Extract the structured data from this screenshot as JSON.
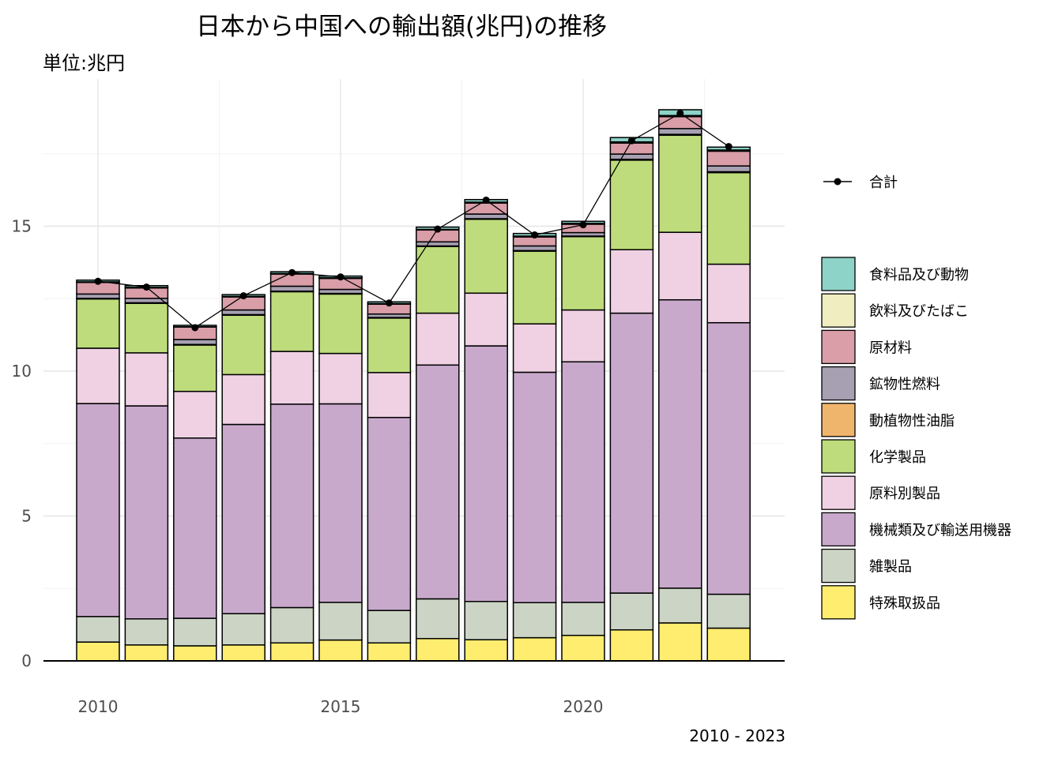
{
  "chart_data": {
    "type": "bar",
    "stacked": true,
    "title": "日本から中国への輸出額(兆円)の推移",
    "subtitle": "単位:兆円",
    "caption": "2010 - 2023",
    "xlabel": "",
    "ylabel": "",
    "x": [
      2010,
      2011,
      2012,
      2013,
      2014,
      2015,
      2016,
      2017,
      2018,
      2019,
      2020,
      2021,
      2022,
      2023
    ],
    "x_ticks": [
      2010,
      2015,
      2020
    ],
    "y_ticks": [
      0,
      5,
      10,
      15
    ],
    "ylim": [
      0,
      19
    ],
    "grid": true,
    "legend_position": "right",
    "series": [
      {
        "name": "特殊取扱品",
        "color": "#FFED6F",
        "values": [
          0.65,
          0.55,
          0.52,
          0.55,
          0.62,
          0.72,
          0.62,
          0.77,
          0.73,
          0.8,
          0.88,
          1.07,
          1.31,
          1.13
        ]
      },
      {
        "name": "雑製品",
        "color": "#CCD5C5",
        "values": [
          0.88,
          0.9,
          0.95,
          1.08,
          1.22,
          1.3,
          1.12,
          1.37,
          1.32,
          1.21,
          1.14,
          1.27,
          1.2,
          1.17
        ]
      },
      {
        "name": "機械類及び輸送用機器",
        "color": "#C8A9CC",
        "values": [
          7.35,
          7.35,
          6.22,
          6.53,
          7.02,
          6.85,
          6.66,
          8.07,
          8.82,
          7.95,
          8.3,
          9.66,
          9.95,
          9.37
        ]
      },
      {
        "name": "原料別製品",
        "color": "#EFD1E3",
        "values": [
          1.91,
          1.83,
          1.61,
          1.72,
          1.82,
          1.74,
          1.55,
          1.79,
          1.82,
          1.67,
          1.79,
          2.19,
          2.33,
          2.02
        ]
      },
      {
        "name": "化学製品",
        "color": "#BEDC7B",
        "values": [
          1.7,
          1.71,
          1.6,
          2.05,
          2.06,
          2.05,
          1.88,
          2.3,
          2.55,
          2.51,
          2.53,
          3.09,
          3.35,
          3.16
        ]
      },
      {
        "name": "動植物性油脂",
        "color": "#F0B56C",
        "values": [
          0.02,
          0.02,
          0.02,
          0.02,
          0.02,
          0.02,
          0.02,
          0.02,
          0.02,
          0.02,
          0.02,
          0.03,
          0.03,
          0.03
        ]
      },
      {
        "name": "鉱物性燃料",
        "color": "#A7A0B2",
        "values": [
          0.15,
          0.15,
          0.17,
          0.16,
          0.17,
          0.14,
          0.12,
          0.14,
          0.16,
          0.16,
          0.12,
          0.18,
          0.2,
          0.2
        ]
      },
      {
        "name": "原材料",
        "color": "#D99EA8",
        "values": [
          0.4,
          0.36,
          0.43,
          0.45,
          0.42,
          0.38,
          0.34,
          0.41,
          0.38,
          0.31,
          0.29,
          0.38,
          0.41,
          0.51
        ]
      },
      {
        "name": "飲料及びたばこ",
        "color": "#F0EEC0",
        "values": [
          0.02,
          0.02,
          0.01,
          0.02,
          0.02,
          0.02,
          0.02,
          0.02,
          0.03,
          0.03,
          0.03,
          0.04,
          0.04,
          0.04
        ]
      },
      {
        "name": "食料品及び動物",
        "color": "#8ED3C8",
        "values": [
          0.06,
          0.06,
          0.05,
          0.06,
          0.06,
          0.06,
          0.06,
          0.08,
          0.09,
          0.09,
          0.07,
          0.15,
          0.2,
          0.1
        ]
      }
    ],
    "total": {
      "name": "合計",
      "color": "#000000",
      "values": [
        13.1,
        12.9,
        11.5,
        12.6,
        13.4,
        13.25,
        12.35,
        14.9,
        15.9,
        14.7,
        15.05,
        17.95,
        18.9,
        17.75
      ]
    }
  }
}
